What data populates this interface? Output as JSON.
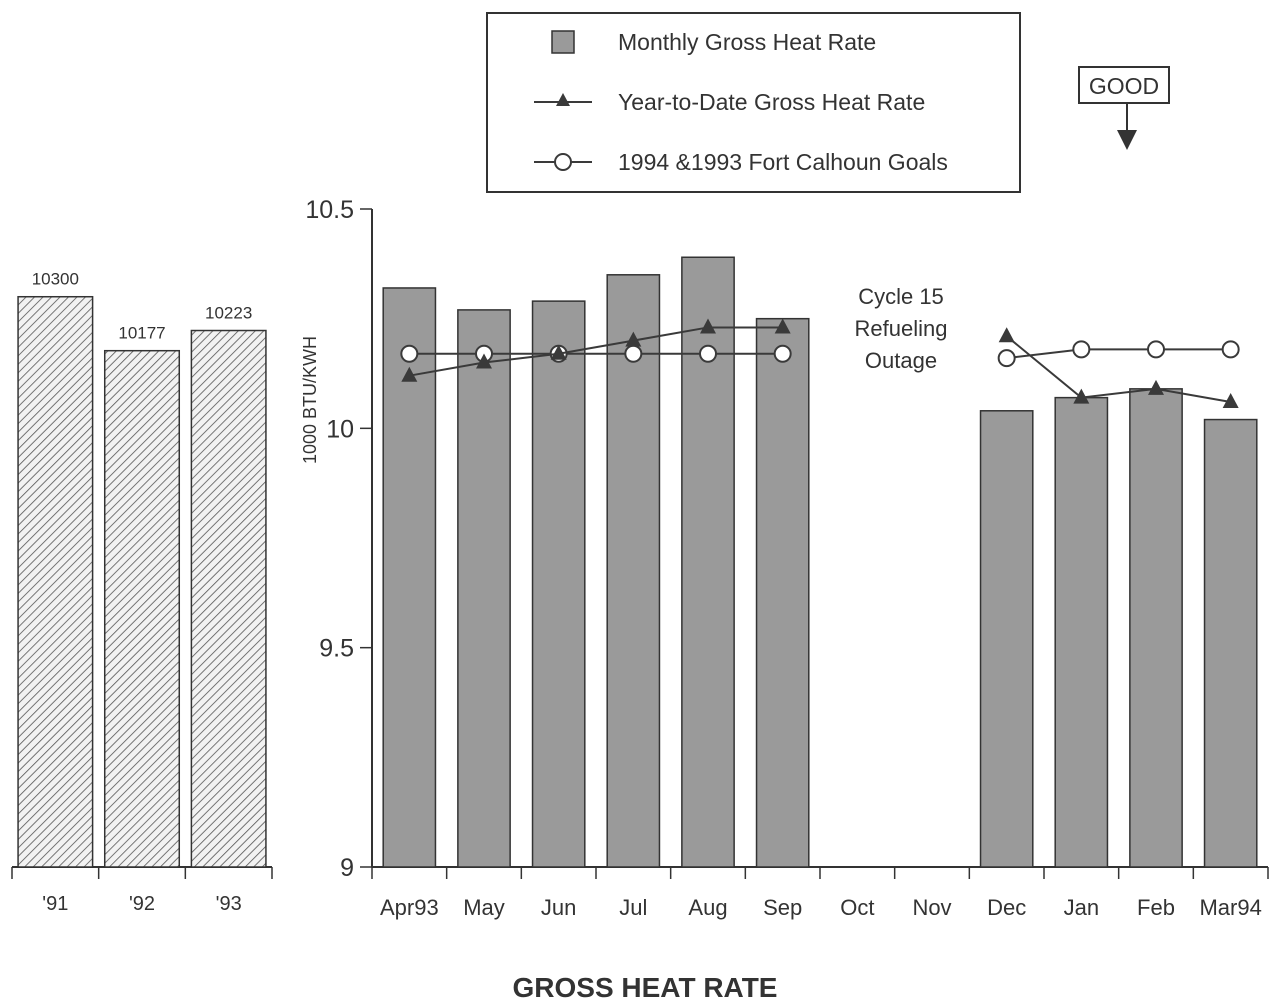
{
  "chart_data": [
    {
      "type": "bar",
      "categories": [
        "'91",
        "'92",
        "'93"
      ],
      "values": [
        10300,
        10177,
        10223
      ],
      "data_labels": [
        "10300",
        "10177",
        "10223"
      ],
      "bar_pattern": "diagonal-hatch",
      "ylim": [
        9000,
        10500
      ]
    },
    {
      "type": "bar",
      "title": "GROSS HEAT RATE",
      "ylabel": "1000 BTU/KWH",
      "ylim": [
        9,
        10.5
      ],
      "yticks": [
        "9",
        "9.5",
        "10",
        "10.5"
      ],
      "categories": [
        "Apr93",
        "May",
        "Jun",
        "Jul",
        "Aug",
        "Sep",
        "Oct",
        "Nov",
        "Dec",
        "Jan",
        "Feb",
        "Mar94"
      ],
      "series": [
        {
          "name": "Monthly Gross Heat Rate",
          "kind": "bar",
          "values": [
            10.32,
            10.27,
            10.29,
            10.35,
            10.39,
            10.25,
            null,
            null,
            10.04,
            10.07,
            10.09,
            10.02
          ]
        },
        {
          "name": "Year-to-Date Gross Heat Rate",
          "kind": "line",
          "marker": "triangle",
          "values": [
            10.12,
            10.15,
            10.17,
            10.2,
            10.23,
            10.23,
            null,
            null,
            10.21,
            10.07,
            10.09,
            10.06
          ]
        },
        {
          "name": "1994 &1993 Fort Calhoun Goals",
          "kind": "line",
          "marker": "circle",
          "values": [
            10.17,
            10.17,
            10.17,
            10.17,
            10.17,
            10.17,
            null,
            null,
            10.16,
            10.18,
            10.18,
            10.18
          ]
        }
      ],
      "annotations": {
        "outage_lines": [
          "Cycle 15",
          "Refueling",
          "Outage"
        ],
        "good_label": "GOOD"
      },
      "legend_position": "top-center",
      "colors": {
        "bar": "#9a9a9a",
        "line": "#3a3a3a",
        "hatch": "#555555"
      }
    }
  ]
}
